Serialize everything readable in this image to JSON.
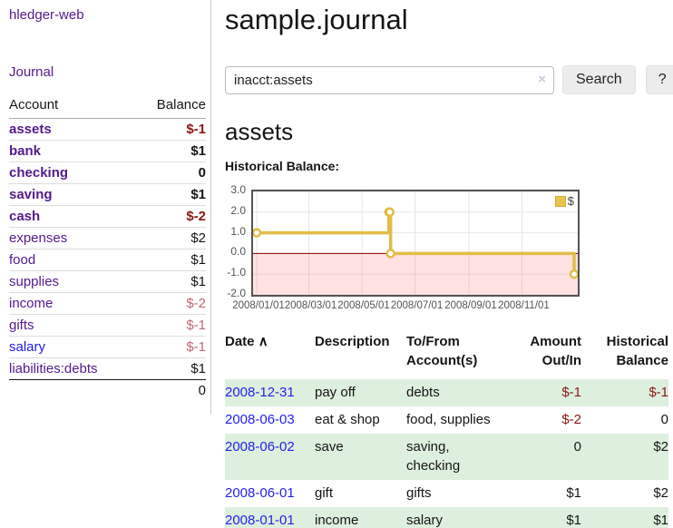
{
  "colors": {
    "link_purple": "#551a8b",
    "link_blue": "#1c1cea",
    "negative_strong": "#8b1616",
    "negative_soft": "#bd6a74",
    "row_stripe_green": "#ddefdd",
    "chart_line_gold": "#e2bd47",
    "chart_negative_fill_pink": "#fbdcdc",
    "chart_zero_line": "#8b0000"
  },
  "sidebar": {
    "brand": "hledger-web",
    "nav_journal": "Journal",
    "headers": {
      "account": "Account",
      "balance": "Balance"
    },
    "accounts": [
      {
        "name": "assets",
        "balance": "$-1"
      },
      {
        "name": "bank",
        "balance": "$1"
      },
      {
        "name": "checking",
        "balance": "0"
      },
      {
        "name": "saving",
        "balance": "$1"
      },
      {
        "name": "cash",
        "balance": "$-2"
      },
      {
        "name": "expenses",
        "balance": "$2"
      },
      {
        "name": "food",
        "balance": "$1"
      },
      {
        "name": "supplies",
        "balance": "$1"
      },
      {
        "name": "income",
        "balance": "$-2"
      },
      {
        "name": "gifts",
        "balance": "$-1"
      },
      {
        "name": "salary",
        "balance": "$-1"
      },
      {
        "name": "liabilities:debts",
        "balance": "$1"
      }
    ],
    "total": "0"
  },
  "main": {
    "title": "sample.journal",
    "search": {
      "value": "inacct:assets",
      "clear_icon": "×",
      "button_label": "Search",
      "help_label": "?"
    },
    "account_heading": "assets",
    "chart_heading": "Historical Balance:"
  },
  "chart_data": {
    "type": "line",
    "title": "Historical Balance:",
    "legend": {
      "position": "top-right",
      "label": "$"
    },
    "series": [
      {
        "name": "$",
        "color": "#e2bd47",
        "steps": true,
        "points": [
          [
            "2008/01/01",
            1
          ],
          [
            "2008/06/01",
            2
          ],
          [
            "2008/06/02",
            2
          ],
          [
            "2008/06/03",
            0
          ],
          [
            "2008/12/31",
            -1
          ]
        ]
      }
    ],
    "xdomain": [
      "2008/01/01",
      "2008/12/31"
    ],
    "ylim": [
      -2,
      3
    ],
    "yticks": [
      3,
      2,
      1,
      0,
      -1,
      -2
    ],
    "ytick_labels": [
      "3.0",
      "2.0",
      "1.0",
      "0.0",
      "-1.0",
      "-2.0"
    ],
    "xtick_labels": [
      "2008/01/01",
      "2008/03/01",
      "2008/05/01",
      "2008/07/01",
      "2008/09/01",
      "2008/11/01"
    ],
    "grid": true,
    "negative_fill": "rgba(255,70,70,0.16)",
    "zero_line": "#8b0000"
  },
  "register": {
    "sort_icon": "∧",
    "headers": {
      "date": "Date",
      "description": "Description",
      "accounts": "To/From Account(s)",
      "amount": "Amount Out/In",
      "balance": "Historical Balance"
    },
    "rows": [
      {
        "date": "2008-12-31",
        "description": "pay off",
        "accounts": "debts",
        "amount": "$-1",
        "balance": "$-1"
      },
      {
        "date": "2008-06-03",
        "description": "eat & shop",
        "accounts": "food, supplies",
        "amount": "$-2",
        "balance": "0"
      },
      {
        "date": "2008-06-02",
        "description": "save",
        "accounts": "saving, checking",
        "amount": "0",
        "balance": "$2"
      },
      {
        "date": "2008-06-01",
        "description": "gift",
        "accounts": "gifts",
        "amount": "$1",
        "balance": "$2"
      },
      {
        "date": "2008-01-01",
        "description": "income",
        "accounts": "salary",
        "amount": "$1",
        "balance": "$1"
      }
    ]
  }
}
